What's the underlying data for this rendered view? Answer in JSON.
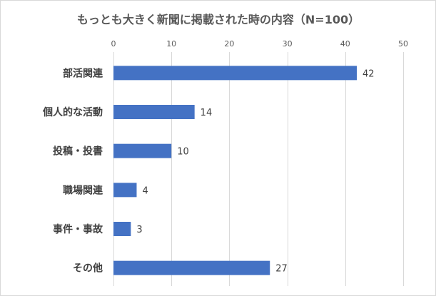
{
  "chart_data": {
    "type": "bar",
    "orientation": "horizontal",
    "title": "もっとも大きく新聞に掲載された時の内容（N=100）",
    "categories": [
      "部活関連",
      "個人的な活動",
      "投稿・投書",
      "職場関連",
      "事件・事故",
      "その他"
    ],
    "values": [
      42,
      14,
      10,
      4,
      3,
      27
    ],
    "xlim": [
      0,
      50
    ],
    "x_ticks": [
      0,
      10,
      20,
      30,
      40,
      50
    ],
    "x_axis_position": "top",
    "grid": true,
    "legend": "none",
    "data_labels": true,
    "bar_color": "#4472c4"
  }
}
